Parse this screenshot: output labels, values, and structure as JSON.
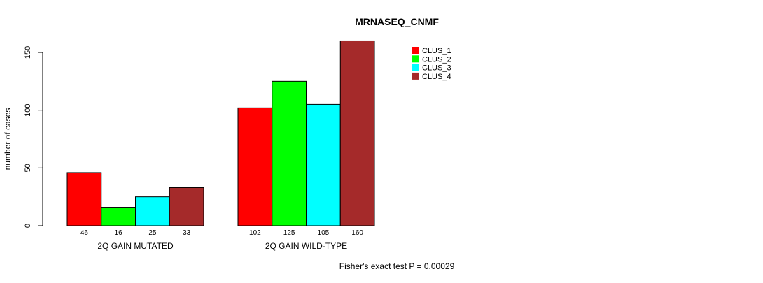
{
  "chart_data": {
    "type": "bar",
    "title": "MRNASEQ_CNMF",
    "xlabel": "",
    "ylabel": "number of cases",
    "ylim": [
      0,
      150
    ],
    "yticks": [
      0,
      50,
      100,
      150
    ],
    "groups": [
      "2Q GAIN MUTATED",
      "2Q GAIN WILD-TYPE"
    ],
    "series": [
      {
        "name": "CLUS_1",
        "color": "#FF0000",
        "values": [
          46,
          102
        ]
      },
      {
        "name": "CLUS_2",
        "color": "#00FF00",
        "values": [
          16,
          125
        ]
      },
      {
        "name": "CLUS_3",
        "color": "#00FFFF",
        "values": [
          25,
          105
        ]
      },
      {
        "name": "CLUS_4",
        "color": "#A52A2A",
        "values": [
          33,
          160
        ]
      }
    ],
    "legend_position": "top-right",
    "grid": false,
    "annotation": "Fisher's exact test P = 0.00029"
  }
}
